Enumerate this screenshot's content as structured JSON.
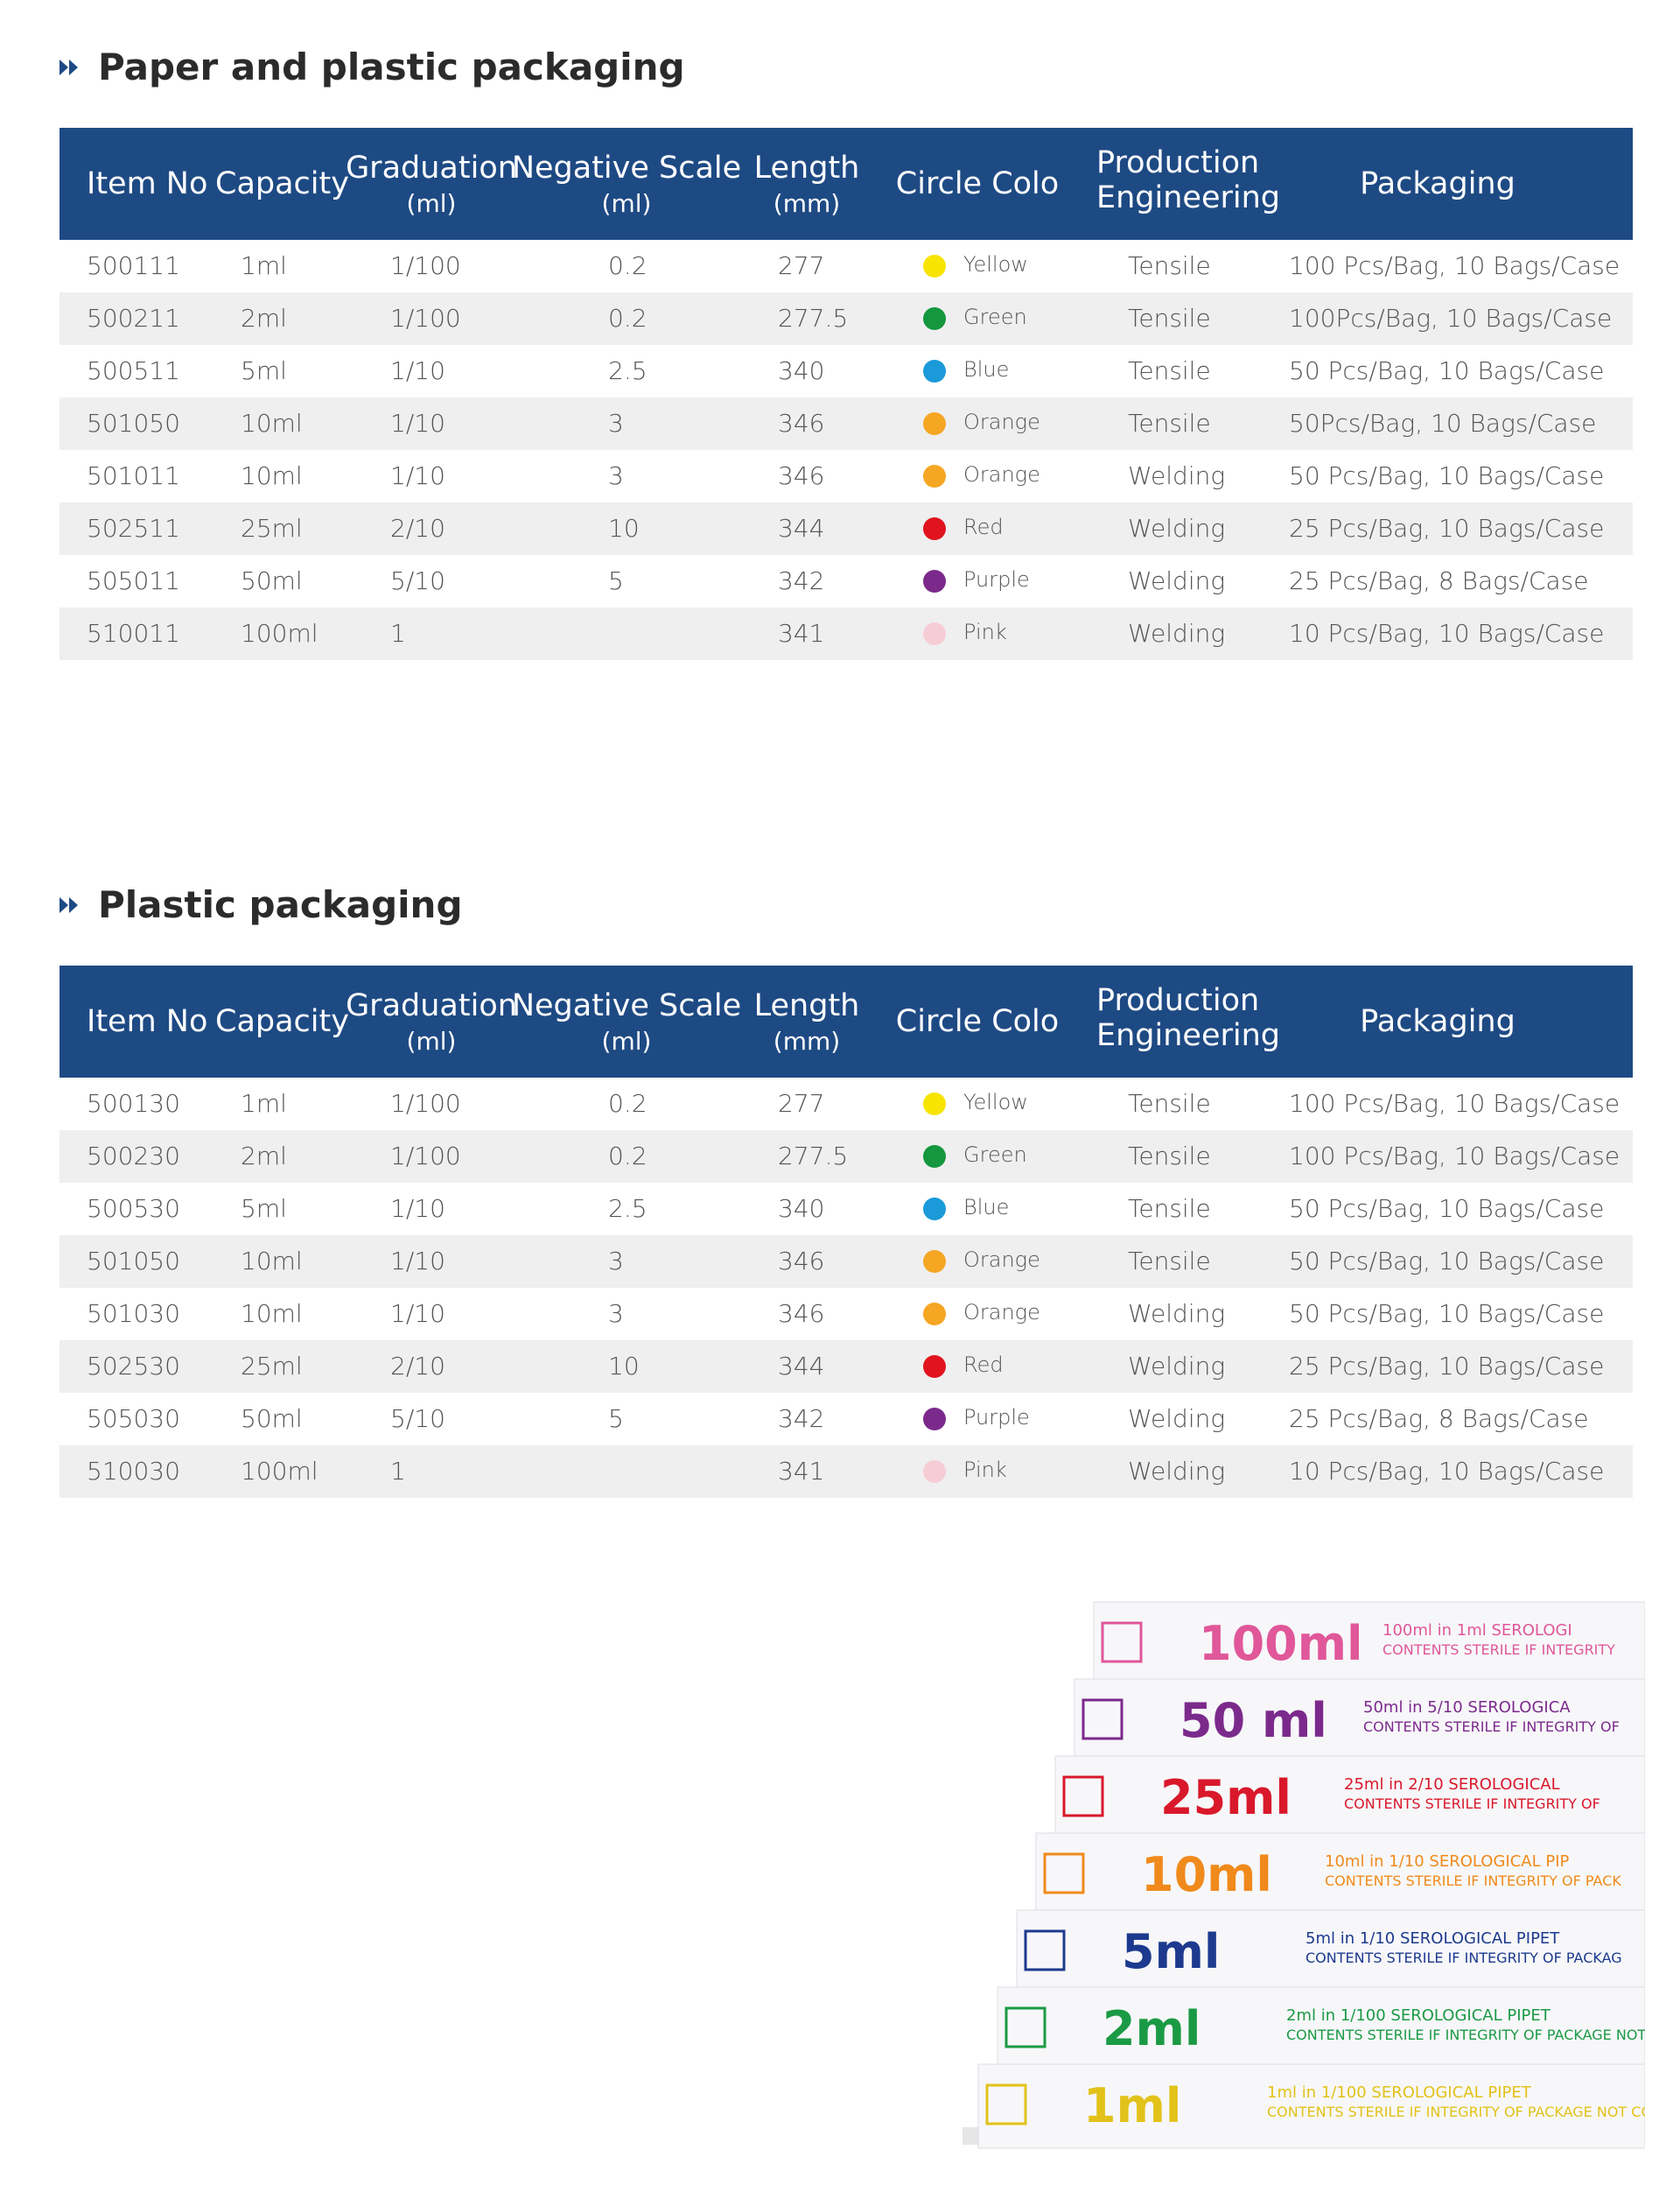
{
  "sections": [
    {
      "title": "Paper and plastic packaging",
      "headers": [
        {
          "label": "Item No"
        },
        {
          "label": "Capacity"
        },
        {
          "label": "Graduation",
          "sub": "(ml)"
        },
        {
          "label": "Negative Scale",
          "sub": "(ml)"
        },
        {
          "label": "Length",
          "sub": "(mm)"
        },
        {
          "label": "Circle Colo"
        },
        {
          "label": "Production Engineering"
        },
        {
          "label": "Packaging"
        }
      ],
      "rows": [
        [
          "500111",
          "1ml",
          "1/100",
          "0.2",
          "277",
          "Yellow",
          "Tensile",
          "100 Pcs/Bag, 10 Bags/Case"
        ],
        [
          "500211",
          "2ml",
          "1/100",
          "0.2",
          "277.5",
          "Green",
          "Tensile",
          "100Pcs/Bag, 10 Bags/Case"
        ],
        [
          "500511",
          "5ml",
          "1/10",
          "2.5",
          "340",
          "Blue",
          "Tensile",
          "50 Pcs/Bag, 10 Bags/Case"
        ],
        [
          "501050",
          "10ml",
          "1/10",
          "3",
          "346",
          "Orange",
          "Tensile",
          "50Pcs/Bag, 10 Bags/Case"
        ],
        [
          "501011",
          "10ml",
          "1/10",
          "3",
          "346",
          "Orange",
          "Welding",
          "50 Pcs/Bag, 10 Bags/Case"
        ],
        [
          "502511",
          "25ml",
          "2/10",
          "10",
          "344",
          "Red",
          "Welding",
          "25 Pcs/Bag, 10 Bags/Case"
        ],
        [
          "505011",
          "50ml",
          "5/10",
          "5",
          "342",
          "Purple",
          "Welding",
          "25 Pcs/Bag, 8 Bags/Case"
        ],
        [
          "510011",
          "100ml",
          "1",
          null,
          "341",
          "Pink",
          "Welding",
          "10 Pcs/Bag, 10 Bags/Case"
        ]
      ],
      "dot_colors": [
        "#f7e400",
        "#14973e",
        "#1a9ad9",
        "#f5a623",
        "#f5a623",
        "#e0131f",
        "#7b2a8c",
        "#f6cdd6"
      ]
    },
    {
      "title": "Plastic packaging",
      "headers": [
        {
          "label": "Item No"
        },
        {
          "label": "Capacity"
        },
        {
          "label": "Graduation",
          "sub": "(ml)"
        },
        {
          "label": "Negative Scale",
          "sub": "(ml)"
        },
        {
          "label": "Length",
          "sub": "(mm)"
        },
        {
          "label": "Circle Colo"
        },
        {
          "label": "Production Engineering"
        },
        {
          "label": "Packaging"
        }
      ],
      "rows": [
        [
          "500130",
          "1ml",
          "1/100",
          "0.2",
          "277",
          "Yellow",
          "Tensile",
          "100 Pcs/Bag, 10 Bags/Case"
        ],
        [
          "500230",
          "2ml",
          "1/100",
          "0.2",
          "277.5",
          "Green",
          "Tensile",
          "100 Pcs/Bag, 10 Bags/Case"
        ],
        [
          "500530",
          "5ml",
          "1/10",
          "2.5",
          "340",
          "Blue",
          "Tensile",
          "50 Pcs/Bag, 10 Bags/Case"
        ],
        [
          "501050",
          "10ml",
          "1/10",
          "3",
          "346",
          "Orange",
          "Tensile",
          "50 Pcs/Bag, 10 Bags/Case"
        ],
        [
          "501030",
          "10ml",
          "1/10",
          "3",
          "346",
          "Orange",
          "Welding",
          "50 Pcs/Bag, 10 Bags/Case"
        ],
        [
          "502530",
          "25ml",
          "2/10",
          "10",
          "344",
          "Red",
          "Welding",
          "25 Pcs/Bag, 10 Bags/Case"
        ],
        [
          "505030",
          "50ml",
          "5/10",
          "5",
          "342",
          "Purple",
          "Welding",
          "25 Pcs/Bag, 8 Bags/Case"
        ],
        [
          "510030",
          "100ml",
          "1",
          null,
          "341",
          "Pink",
          "Welding",
          "10 Pcs/Bag, 10 Bags/Case"
        ]
      ],
      "dot_colors": [
        "#f7e400",
        "#14973e",
        "#1a9ad9",
        "#f5a623",
        "#f5a623",
        "#e0131f",
        "#7b2a8c",
        "#f6cdd6"
      ]
    }
  ],
  "photo": {
    "packets": [
      {
        "big": "100ml",
        "line1": "100ml in 1ml   SEROLOGI",
        "line2": "CONTENTS STERILE IF INTEGRITY",
        "color": "#e0579a"
      },
      {
        "big": "50 ml",
        "line1": "50ml in 5/10   SEROLOGICA",
        "line2": "CONTENTS STERILE IF INTEGRITY OF",
        "color": "#7b2a8c"
      },
      {
        "big": "25ml",
        "line1": "25ml in 2/10   SEROLOGICAL",
        "line2": "CONTENTS STERILE IF INTEGRITY OF",
        "color": "#d9182b"
      },
      {
        "big": "10ml",
        "line1": "10ml in 1/10   SEROLOGICAL PIP",
        "line2": "CONTENTS STERILE IF INTEGRITY OF PACK",
        "color": "#f08a1c"
      },
      {
        "big": "5ml",
        "line1": "5ml in 1/10   SEROLOGICAL PIPET",
        "line2": "CONTENTS STERILE IF INTEGRITY OF PACKAG",
        "color": "#1d3a8f"
      },
      {
        "big": "2ml",
        "line1": "2ml in 1/100   SEROLOGICAL PIPET",
        "line2": "CONTENTS STERILE IF INTEGRITY OF PACKAGE NOT COM",
        "color": "#1b9a45"
      },
      {
        "big": "1ml",
        "line1": "1ml in 1/100   SEROLOGICAL PIPET",
        "line2": "CONTENTS STERILE IF INTEGRITY OF PACKAGE NOT COM",
        "color": "#e2c21a"
      }
    ]
  }
}
